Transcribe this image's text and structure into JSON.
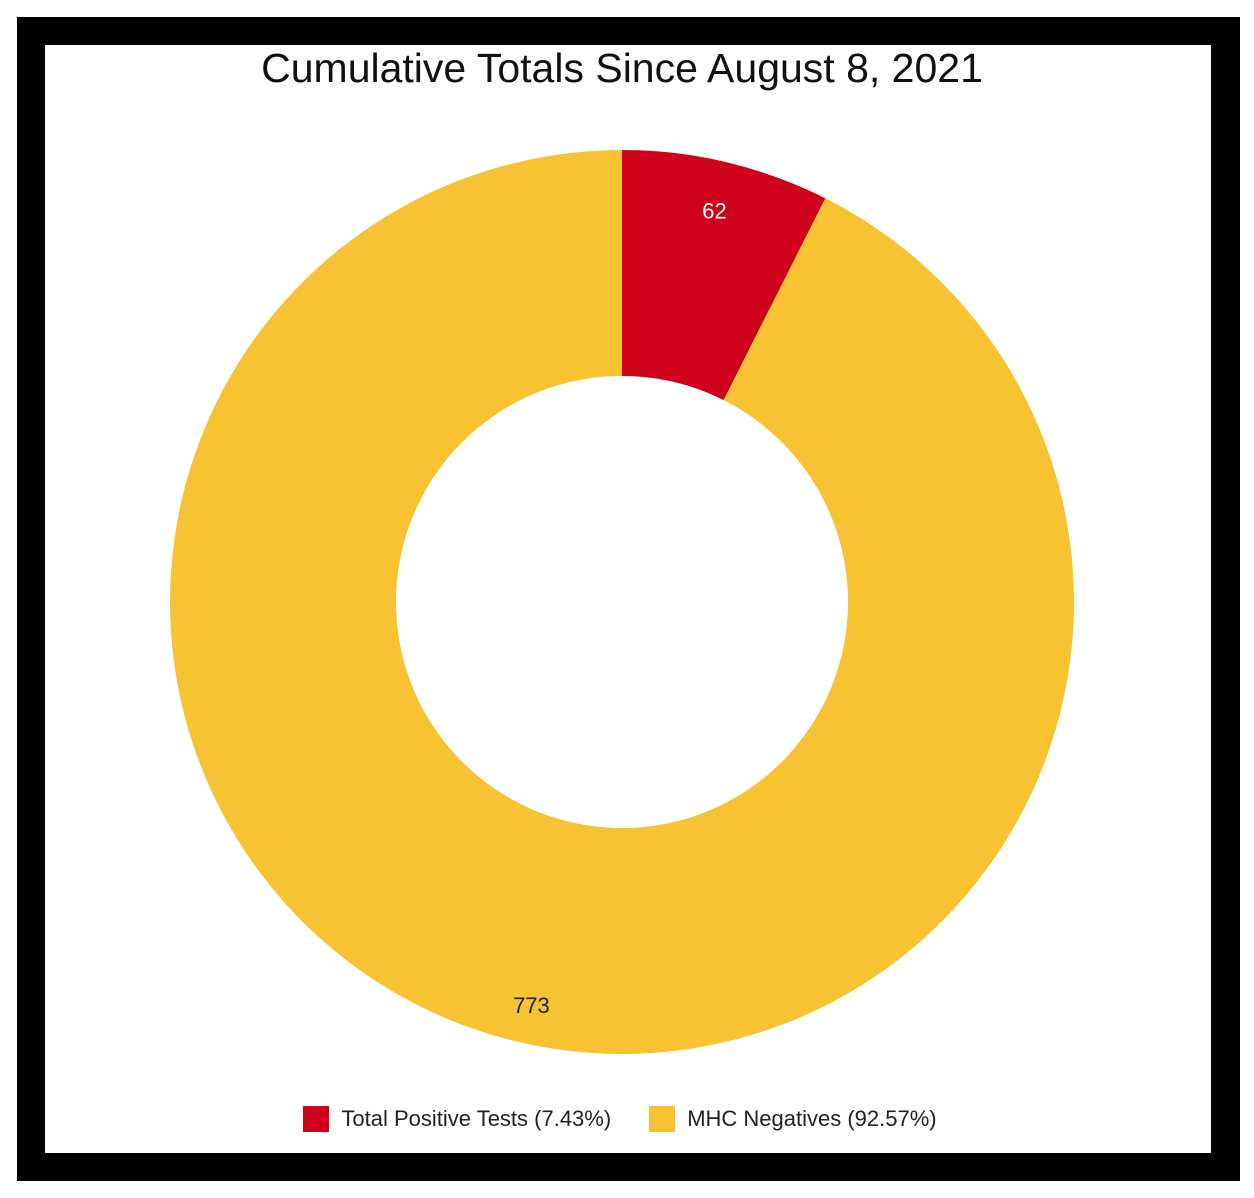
{
  "chart_data": {
    "type": "pie",
    "style": "donut",
    "title": "Cumulative Totals Since August 8, 2021",
    "slices": [
      {
        "label": "Total Positive Tests",
        "value": 62,
        "percent_label": "(7.43%)",
        "value_label": "62",
        "color": "#d0021b"
      },
      {
        "label": "MHC Negatives",
        "value": 773,
        "percent_label": "(92.57%)",
        "value_label": "773",
        "color": "#f8c332"
      }
    ],
    "legend_position": "bottom"
  },
  "legend": {
    "items": [
      {
        "label": "Total Positive Tests (7.43%)",
        "color": "#d0021b"
      },
      {
        "label": "MHC Negatives (92.57%)",
        "color": "#f8c332"
      }
    ]
  },
  "colors": {
    "frame": "#000000",
    "background": "#ffffff",
    "inner_label_dark": "#222222",
    "inner_label_light": "#ffffff"
  }
}
